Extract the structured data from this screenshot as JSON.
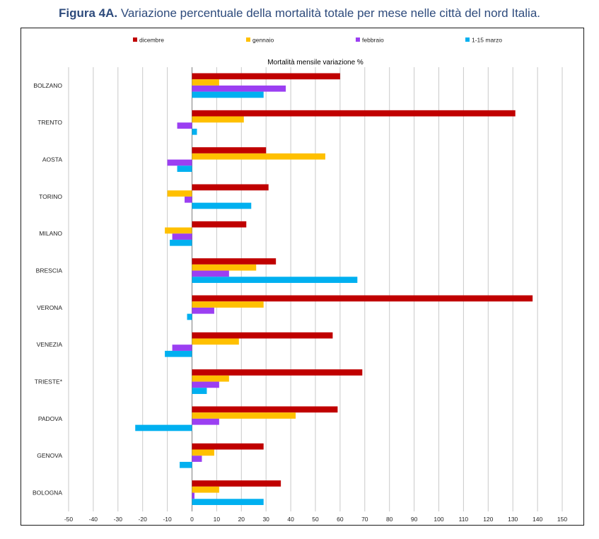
{
  "figure": {
    "title_bold": "Figura 4A.",
    "title_rest": "Variazione percentuale della mortalità totale per mese nelle città del nord Italia."
  },
  "chart_data": {
    "type": "bar",
    "orientation": "horizontal",
    "title": "Mortalità mensile variazione %",
    "xlabel": "",
    "ylabel": "",
    "xlim": [
      -50,
      150
    ],
    "xticks": [
      -50,
      -40,
      -30,
      -20,
      -10,
      0,
      10,
      20,
      30,
      40,
      50,
      60,
      70,
      80,
      90,
      100,
      110,
      120,
      130,
      140,
      150
    ],
    "grid": true,
    "legend": "top",
    "categories": [
      "BOLZANO",
      "TRENTO",
      "AOSTA",
      "TORINO",
      "MILANO",
      "BRESCIA",
      "VERONA",
      "VENEZIA",
      "TRIESTE*",
      "PADOVA",
      "GENOVA",
      "BOLOGNA"
    ],
    "series": [
      {
        "name": "dicembre",
        "color": "#c00000",
        "values": [
          60,
          131,
          30,
          31,
          22,
          34,
          138,
          57,
          69,
          59,
          29,
          36
        ]
      },
      {
        "name": "gennaio",
        "color": "#ffc000",
        "values": [
          11,
          21,
          54,
          -10,
          -11,
          26,
          29,
          19,
          15,
          42,
          9,
          11
        ]
      },
      {
        "name": "febbraio",
        "color": "#9b3ff2",
        "values": [
          38,
          -6,
          -10,
          -3,
          -8,
          15,
          9,
          -8,
          11,
          11,
          4,
          1
        ]
      },
      {
        "name": "1-15 marzo",
        "color": "#00b0f0",
        "values": [
          29,
          2,
          -6,
          24,
          -9,
          67,
          -2,
          -11,
          6,
          -23,
          -5,
          29
        ]
      }
    ]
  }
}
